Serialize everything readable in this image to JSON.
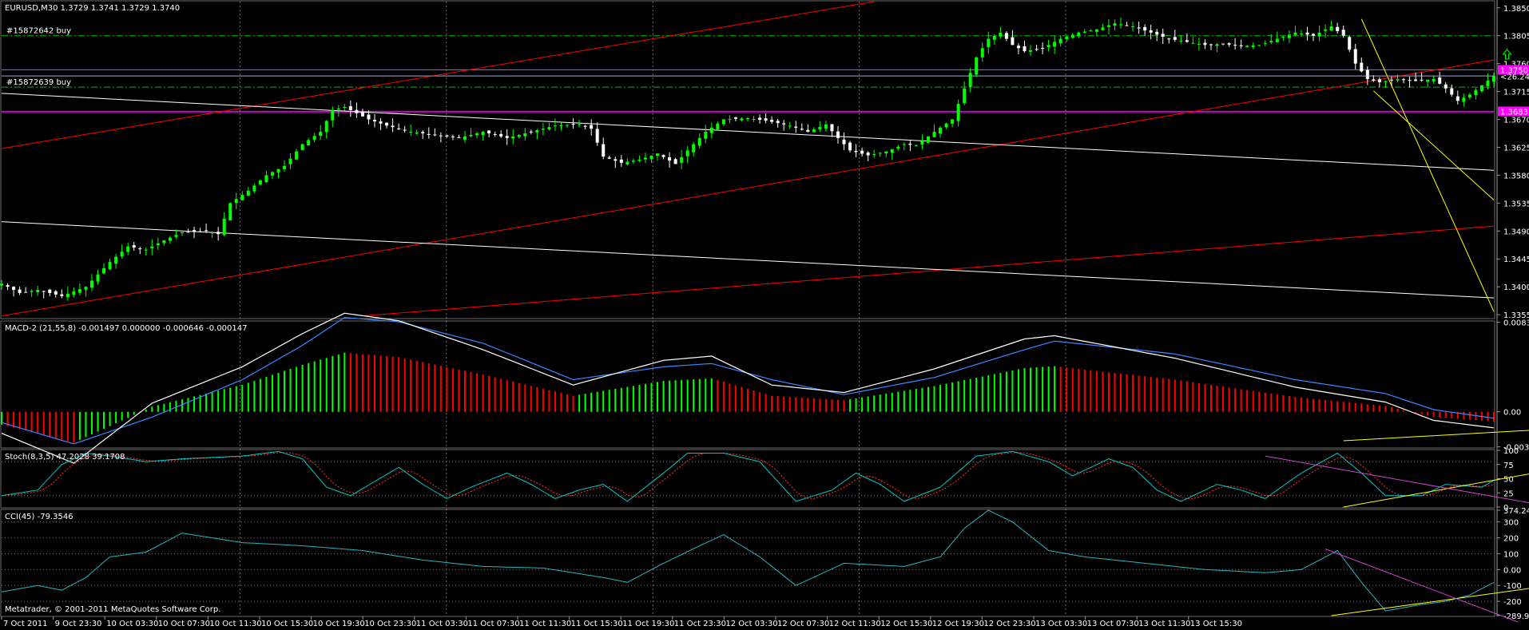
{
  "colors": {
    "background": "#000000",
    "grid": "#c8c8c8",
    "bull_candle": "#00ff00",
    "bear_candle": "#ffffff",
    "axis_text": "#ffffff",
    "trend_red": "#ff0000",
    "trend_white": "#ffffff",
    "trend_yellow": "#ffff00",
    "trend_violet": "#cc44cc",
    "level_green": "#00c000",
    "level_magenta": "#ff00ff",
    "level_blue": "#6b7dff",
    "macd_main": "#ffffff",
    "macd_signal": "#3b86ff",
    "hist_pos": "#00ff00",
    "hist_neg": "#ff0000",
    "stoch_main": "#00c8c8",
    "stoch_signal": "#ff3030",
    "cci": "#2bb3c0"
  },
  "chart_data": [
    {
      "type": "candlestick",
      "panel": "price",
      "title": "EURUSD,M30  1.3729 1.3741 1.3729 1.3740",
      "ylim": [
        1.335,
        1.386
      ],
      "y_ticks": [
        "1.3850",
        "1.3805",
        "1.3760",
        "1.3715",
        "1.3670",
        "1.3625",
        "1.3580",
        "1.3535",
        "1.3490",
        "1.3445",
        "1.3400",
        "1.3355"
      ],
      "price_tags": [
        {
          "label": "1.3750",
          "value": 1.375,
          "color": "#ff00ff"
        },
        {
          "label": "1.3683",
          "value": 1.3683,
          "color": "#ff00ff"
        }
      ],
      "order_levels": [
        {
          "label": "#15872642 buy",
          "value": 1.3805
        },
        {
          "label": "#15872639 buy",
          "value": 1.3722
        }
      ],
      "horizontal_levels": [
        {
          "value": 1.375,
          "color": "#6b7dff"
        },
        {
          "value": 1.374,
          "color": "#6b7dff"
        },
        {
          "value": 1.3683,
          "color": "#ff00ff"
        },
        {
          "value": 1.3681,
          "color": "#ff00ff"
        }
      ],
      "annotation": "<26.24",
      "annotation_value": 1.3742,
      "last_price": 1.374,
      "anchors": [
        [
          0,
          1.3405
        ],
        [
          3,
          1.339
        ],
        [
          6,
          1.3395
        ],
        [
          10,
          1.3385
        ],
        [
          14,
          1.34
        ],
        [
          18,
          1.344
        ],
        [
          21,
          1.3465
        ],
        [
          24,
          1.346
        ],
        [
          27,
          1.3475
        ],
        [
          30,
          1.3488
        ],
        [
          34,
          1.349
        ],
        [
          36,
          1.3485
        ],
        [
          38,
          1.3535
        ],
        [
          41,
          1.3555
        ],
        [
          44,
          1.358
        ],
        [
          47,
          1.3595
        ],
        [
          50,
          1.363
        ],
        [
          53,
          1.365
        ],
        [
          55,
          1.3685
        ],
        [
          57,
          1.369
        ],
        [
          61,
          1.367
        ],
        [
          64,
          1.366
        ],
        [
          68,
          1.365
        ],
        [
          72,
          1.3645
        ],
        [
          76,
          1.364
        ],
        [
          80,
          1.365
        ],
        [
          84,
          1.364
        ],
        [
          88,
          1.365
        ],
        [
          92,
          1.366
        ],
        [
          96,
          1.3662
        ],
        [
          98,
          1.3655
        ],
        [
          100,
          1.361
        ],
        [
          103,
          1.36
        ],
        [
          106,
          1.3605
        ],
        [
          109,
          1.3615
        ],
        [
          112,
          1.3598
        ],
        [
          114,
          1.362
        ],
        [
          117,
          1.365
        ],
        [
          120,
          1.367
        ],
        [
          124,
          1.3672
        ],
        [
          127,
          1.3668
        ],
        [
          131,
          1.366
        ],
        [
          134,
          1.365
        ],
        [
          137,
          1.3662
        ],
        [
          139,
          1.364
        ],
        [
          141,
          1.362
        ],
        [
          144,
          1.3612
        ],
        [
          147,
          1.3618
        ],
        [
          150,
          1.363
        ],
        [
          152,
          1.3628
        ],
        [
          155,
          1.365
        ],
        [
          158,
          1.367
        ],
        [
          160,
          1.372
        ],
        [
          162,
          1.377
        ],
        [
          164,
          1.38
        ],
        [
          166,
          1.381
        ],
        [
          168,
          1.379
        ],
        [
          170,
          1.378
        ],
        [
          173,
          1.3785
        ],
        [
          176,
          1.38
        ],
        [
          179,
          1.381
        ],
        [
          182,
          1.3815
        ],
        [
          185,
          1.3825
        ],
        [
          188,
          1.382
        ],
        [
          191,
          1.381
        ],
        [
          194,
          1.38
        ],
        [
          197,
          1.3795
        ],
        [
          200,
          1.379
        ],
        [
          203,
          1.3792
        ],
        [
          206,
          1.3788
        ],
        [
          209,
          1.379
        ],
        [
          212,
          1.38
        ],
        [
          215,
          1.381
        ],
        [
          218,
          1.3805
        ],
        [
          221,
          1.382
        ],
        [
          223,
          1.3805
        ],
        [
          225,
          1.376
        ],
        [
          227,
          1.3735
        ],
        [
          229,
          1.373
        ],
        [
          232,
          1.3735
        ],
        [
          235,
          1.3732
        ],
        [
          238,
          1.3735
        ],
        [
          240,
          1.372
        ],
        [
          242,
          1.37
        ],
        [
          244,
          1.371
        ],
        [
          246,
          1.3725
        ],
        [
          248,
          1.374
        ]
      ],
      "x_ticks": [
        "7 Oct 2011",
        "9 Oct 23:30",
        "10 Oct 03:30",
        "10 Oct 07:30",
        "10 Oct 11:30",
        "10 Oct 15:30",
        "10 Oct 19:30",
        "10 Oct 23:30",
        "11 Oct 03:30",
        "11 Oct 07:30",
        "11 Oct 11:30",
        "11 Oct 15:30",
        "11 Oct 19:30",
        "11 Oct 23:30",
        "12 Oct 03:30",
        "12 Oct 07:30",
        "12 Oct 11:30",
        "12 Oct 15:30",
        "12 Oct 19:30",
        "12 Oct 23:30",
        "13 Oct 03:30",
        "13 Oct 07:30",
        "13 Oct 11:30",
        "13 Oct 15:30"
      ],
      "trendlines": [
        {
          "color": "#ff0000",
          "from": [
            0,
            1.3623
          ],
          "to": [
            145,
            1.386
          ]
        },
        {
          "color": "#ff0000",
          "from": [
            0,
            1.3353
          ],
          "to": [
            248,
            1.3766
          ]
        },
        {
          "color": "#ff0000",
          "from": [
            60,
            1.3353
          ],
          "to": [
            248,
            1.3498
          ]
        },
        {
          "color": "#ffffff",
          "from": [
            0,
            1.3712
          ],
          "to": [
            248,
            1.3588
          ]
        },
        {
          "color": "#ffffff",
          "from": [
            0,
            1.3505
          ],
          "to": [
            248,
            1.3382
          ]
        },
        {
          "color": "#ffff00",
          "from": [
            226,
            1.3832
          ],
          "to": [
            248,
            1.336
          ]
        },
        {
          "color": "#ffff00",
          "from": [
            228,
            1.3716
          ],
          "to": [
            248,
            1.354
          ]
        }
      ]
    },
    {
      "type": "bar",
      "panel": "macd",
      "title": "MACD-2 (21,55,8) -0.001497 0.000000 -0.000646 -0.000147",
      "ylim": [
        -0.0033,
        0.0084
      ],
      "y_ticks": [
        "0.00835",
        "0.00",
        "-0.00327"
      ],
      "main_anchors": [
        [
          0,
          -0.002
        ],
        [
          12,
          -0.0048
        ],
        [
          25,
          0.0008
        ],
        [
          40,
          0.0042
        ],
        [
          50,
          0.0073
        ],
        [
          57,
          0.0092
        ],
        [
          66,
          0.0085
        ],
        [
          80,
          0.0058
        ],
        [
          95,
          0.0025
        ],
        [
          110,
          0.0048
        ],
        [
          118,
          0.0052
        ],
        [
          128,
          0.0025
        ],
        [
          140,
          0.0018
        ],
        [
          155,
          0.004
        ],
        [
          170,
          0.0068
        ],
        [
          175,
          0.0071
        ],
        [
          195,
          0.005
        ],
        [
          215,
          0.0023
        ],
        [
          230,
          0.0009
        ],
        [
          238,
          -0.0008
        ],
        [
          248,
          -0.0015
        ]
      ],
      "signal_anchors": [
        [
          0,
          -0.001
        ],
        [
          12,
          -0.003
        ],
        [
          25,
          -0.0005
        ],
        [
          40,
          0.003
        ],
        [
          50,
          0.0062
        ],
        [
          57,
          0.0088
        ],
        [
          66,
          0.0084
        ],
        [
          80,
          0.0064
        ],
        [
          95,
          0.003
        ],
        [
          110,
          0.0042
        ],
        [
          118,
          0.0045
        ],
        [
          128,
          0.003
        ],
        [
          140,
          0.0016
        ],
        [
          155,
          0.0032
        ],
        [
          170,
          0.0058
        ],
        [
          175,
          0.0066
        ],
        [
          195,
          0.0054
        ],
        [
          215,
          0.003
        ],
        [
          230,
          0.0017
        ],
        [
          238,
          0.0002
        ],
        [
          248,
          -0.0006
        ]
      ],
      "trendline": {
        "color": "#ffff00",
        "from": [
          223,
          -0.0027
        ],
        "to": [
          248,
          -0.0009
        ]
      }
    },
    {
      "type": "line",
      "panel": "stoch",
      "title": "Stoch(8,3,5) 47.2028 39.1708",
      "ylim": [
        0,
        100
      ],
      "y_ticks": [
        "100",
        "75",
        "50",
        "25",
        "0"
      ],
      "anchors": [
        [
          0,
          20
        ],
        [
          6,
          30
        ],
        [
          10,
          75
        ],
        [
          14,
          95
        ],
        [
          18,
          90
        ],
        [
          24,
          80
        ],
        [
          30,
          85
        ],
        [
          40,
          90
        ],
        [
          46,
          98
        ],
        [
          50,
          85
        ],
        [
          54,
          35
        ],
        [
          58,
          20
        ],
        [
          62,
          45
        ],
        [
          66,
          70
        ],
        [
          70,
          40
        ],
        [
          74,
          15
        ],
        [
          78,
          35
        ],
        [
          84,
          60
        ],
        [
          88,
          40
        ],
        [
          92,
          15
        ],
        [
          96,
          30
        ],
        [
          100,
          40
        ],
        [
          104,
          10
        ],
        [
          110,
          60
        ],
        [
          114,
          95
        ],
        [
          120,
          95
        ],
        [
          126,
          80
        ],
        [
          132,
          10
        ],
        [
          138,
          30
        ],
        [
          142,
          60
        ],
        [
          146,
          40
        ],
        [
          150,
          10
        ],
        [
          156,
          35
        ],
        [
          162,
          90
        ],
        [
          168,
          98
        ],
        [
          174,
          80
        ],
        [
          178,
          55
        ],
        [
          184,
          85
        ],
        [
          188,
          70
        ],
        [
          192,
          30
        ],
        [
          196,
          10
        ],
        [
          202,
          40
        ],
        [
          206,
          30
        ],
        [
          210,
          15
        ],
        [
          216,
          60
        ],
        [
          222,
          95
        ],
        [
          226,
          60
        ],
        [
          230,
          20
        ],
        [
          236,
          20
        ],
        [
          240,
          40
        ],
        [
          246,
          35
        ],
        [
          248,
          47
        ]
      ],
      "trendlines": [
        {
          "color": "#ffff00",
          "from": [
            223,
            0
          ],
          "to": [
            248,
            72
          ]
        },
        {
          "color": "#cc44cc",
          "from": [
            210,
            90
          ],
          "to": [
            248,
            -5
          ]
        }
      ]
    },
    {
      "type": "line",
      "panel": "cci",
      "title": "CCI(45) -79.3546",
      "ylim": [
        -290,
        374
      ],
      "y_ticks": [
        "374.241",
        "300",
        "200",
        "100",
        "0.00",
        "-100",
        "-200",
        "-289.980"
      ],
      "anchors": [
        [
          0,
          -140
        ],
        [
          6,
          -100
        ],
        [
          10,
          -130
        ],
        [
          14,
          -50
        ],
        [
          18,
          80
        ],
        [
          24,
          110
        ],
        [
          30,
          230
        ],
        [
          40,
          170
        ],
        [
          50,
          150
        ],
        [
          60,
          120
        ],
        [
          70,
          60
        ],
        [
          80,
          20
        ],
        [
          90,
          10
        ],
        [
          100,
          -50
        ],
        [
          104,
          -80
        ],
        [
          110,
          40
        ],
        [
          116,
          150
        ],
        [
          120,
          220
        ],
        [
          126,
          80
        ],
        [
          132,
          -100
        ],
        [
          140,
          40
        ],
        [
          150,
          20
        ],
        [
          156,
          80
        ],
        [
          160,
          260
        ],
        [
          164,
          374
        ],
        [
          168,
          300
        ],
        [
          174,
          120
        ],
        [
          180,
          80
        ],
        [
          190,
          40
        ],
        [
          200,
          0
        ],
        [
          210,
          -20
        ],
        [
          216,
          0
        ],
        [
          222,
          120
        ],
        [
          226,
          -80
        ],
        [
          230,
          -260
        ],
        [
          236,
          -220
        ],
        [
          240,
          -200
        ],
        [
          244,
          -160
        ],
        [
          248,
          -80
        ]
      ],
      "trendlines": [
        {
          "color": "#ffff00",
          "from": [
            221,
            -290
          ],
          "to": [
            248,
            80
          ]
        },
        {
          "color": "#cc44cc",
          "from": [
            220,
            130
          ],
          "to": [
            248,
            -330
          ]
        }
      ]
    }
  ],
  "labels": {
    "copyright": "Metatrader, © 2001-2011 MetaQuotes Software Corp."
  }
}
